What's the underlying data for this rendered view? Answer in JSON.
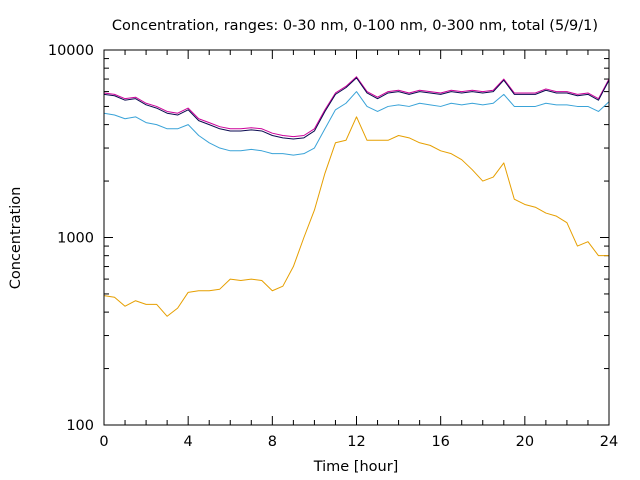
{
  "chart_data": {
    "type": "line",
    "title": "Concentration, ranges: 0-30 nm, 0-100 nm, 0-300 nm, total (5/9/1)",
    "xlabel": "Time [hour]",
    "ylabel": "Concentration",
    "xlim": [
      0,
      24
    ],
    "ylim": [
      100,
      10000
    ],
    "yscale": "log",
    "grid": false,
    "x_ticks": [
      0,
      4,
      8,
      12,
      16,
      20,
      24
    ],
    "x_tick_labels": [
      "0",
      "4",
      "8",
      "12",
      "16",
      "20",
      "24"
    ],
    "y_ticks": [
      100,
      1000,
      10000
    ],
    "y_tick_labels": [
      "100",
      "1000",
      "10000"
    ],
    "colors": {
      "0-30 nm": "#e69f00",
      "0-100 nm": "#3aa3d8",
      "0-300 nm": "#cc0099",
      "total": "#0a0a50"
    },
    "x": [
      0,
      0.5,
      1,
      1.5,
      2,
      2.5,
      3,
      3.5,
      4,
      4.5,
      5,
      5.5,
      6,
      6.5,
      7,
      7.5,
      8,
      8.5,
      9,
      9.5,
      10,
      10.5,
      11,
      11.5,
      12,
      12.5,
      13,
      13.5,
      14,
      14.5,
      15,
      15.5,
      16,
      16.5,
      17,
      17.5,
      18,
      18.5,
      19,
      19.5,
      20,
      20.5,
      21,
      21.5,
      22,
      22.5,
      23,
      23.5,
      24
    ],
    "series": [
      {
        "key": "0-30 nm",
        "values": [
          490,
          480,
          430,
          460,
          440,
          440,
          380,
          420,
          510,
          520,
          520,
          530,
          600,
          590,
          600,
          590,
          520,
          550,
          700,
          1000,
          1400,
          2200,
          3200,
          3300,
          4400,
          3300,
          3300,
          3300,
          3500,
          3400,
          3200,
          3100,
          2900,
          2800,
          2600,
          2300,
          2000,
          2100,
          2500,
          1600,
          1500,
          1450,
          1350,
          1300,
          1200,
          900,
          950,
          800,
          800
        ]
      },
      {
        "key": "0-100 nm",
        "values": [
          4600,
          4500,
          4300,
          4400,
          4100,
          4000,
          3800,
          3800,
          4000,
          3500,
          3200,
          3000,
          2900,
          2900,
          2950,
          2900,
          2800,
          2800,
          2750,
          2800,
          3000,
          3800,
          4800,
          5200,
          6000,
          5000,
          4700,
          5000,
          5100,
          5000,
          5200,
          5100,
          5000,
          5200,
          5100,
          5200,
          5100,
          5200,
          5800,
          5000,
          5000,
          5000,
          5200,
          5100,
          5100,
          5000,
          5000,
          4700,
          5300
        ]
      },
      {
        "key": "0-300 nm",
        "values": [
          5900,
          5800,
          5500,
          5600,
          5200,
          5000,
          4700,
          4600,
          4900,
          4300,
          4100,
          3900,
          3800,
          3800,
          3850,
          3800,
          3600,
          3500,
          3450,
          3500,
          3800,
          4800,
          5900,
          6400,
          7200,
          6000,
          5600,
          6000,
          6100,
          5900,
          6100,
          6000,
          5900,
          6100,
          6000,
          6100,
          6000,
          6100,
          7000,
          5900,
          5900,
          5900,
          6200,
          6000,
          6000,
          5800,
          5900,
          5500,
          7000
        ]
      },
      {
        "key": "total",
        "values": [
          5800,
          5700,
          5400,
          5500,
          5100,
          4900,
          4600,
          4500,
          4800,
          4200,
          4000,
          3800,
          3700,
          3700,
          3750,
          3700,
          3500,
          3400,
          3350,
          3400,
          3700,
          4700,
          5800,
          6300,
          7100,
          5900,
          5500,
          5900,
          6000,
          5800,
          6000,
          5900,
          5800,
          6000,
          5900,
          6000,
          5900,
          6000,
          6900,
          5800,
          5800,
          5800,
          6100,
          5900,
          5900,
          5700,
          5800,
          5400,
          6900
        ]
      }
    ]
  }
}
